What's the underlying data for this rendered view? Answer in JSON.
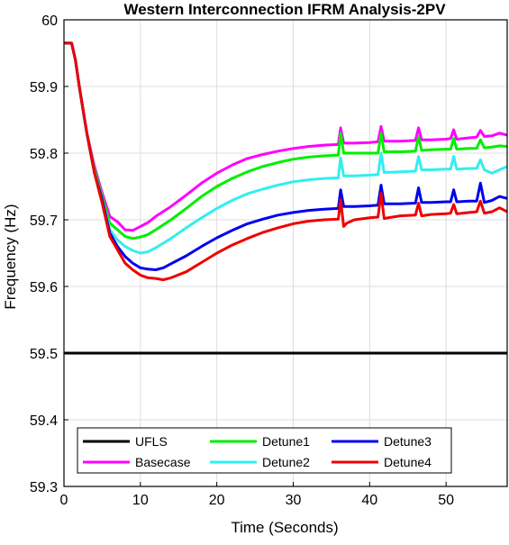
{
  "chart_data": {
    "type": "line",
    "title": "Western Interconnection IFRM Analysis-2PV",
    "xlabel": "Time (Seconds)",
    "ylabel": "Frequency (Hz)",
    "xlim": [
      0,
      58
    ],
    "ylim": [
      59.3,
      60
    ],
    "xticks": [
      0,
      10,
      20,
      30,
      40,
      50
    ],
    "yticks": [
      59.3,
      59.4,
      59.5,
      59.6,
      59.7,
      59.8,
      59.9,
      60
    ],
    "xtick_labels": [
      "0",
      "10",
      "20",
      "30",
      "40",
      "50"
    ],
    "ytick_labels": [
      "59.3",
      "59.4",
      "59.5",
      "59.6",
      "59.7",
      "59.8",
      "59.9",
      "60"
    ],
    "grid": true,
    "legend_position": "bottom",
    "series": [
      {
        "name": "UFLS",
        "color": "#000000",
        "points": [
          [
            0,
            59.5
          ],
          [
            58,
            59.5
          ]
        ]
      },
      {
        "name": "Basecase",
        "color": "#ff00ff",
        "points": [
          [
            0,
            59.965
          ],
          [
            1,
            59.965
          ],
          [
            1.5,
            59.94
          ],
          [
            2,
            59.9
          ],
          [
            3,
            59.83
          ],
          [
            4,
            59.78
          ],
          [
            5,
            59.74
          ],
          [
            6,
            59.705
          ],
          [
            7,
            59.697
          ],
          [
            8,
            59.685
          ],
          [
            9,
            59.684
          ],
          [
            10,
            59.69
          ],
          [
            11,
            59.696
          ],
          [
            12,
            59.705
          ],
          [
            14,
            59.72
          ],
          [
            16,
            59.737
          ],
          [
            18,
            59.755
          ],
          [
            20,
            59.77
          ],
          [
            22,
            59.782
          ],
          [
            24,
            59.792
          ],
          [
            26,
            59.798
          ],
          [
            28,
            59.803
          ],
          [
            30,
            59.807
          ],
          [
            32,
            59.81
          ],
          [
            34,
            59.812
          ],
          [
            35.9,
            59.813
          ],
          [
            36.2,
            59.838
          ],
          [
            36.6,
            59.815
          ],
          [
            38,
            59.815
          ],
          [
            40,
            59.816
          ],
          [
            41.1,
            59.817
          ],
          [
            41.5,
            59.84
          ],
          [
            41.9,
            59.818
          ],
          [
            44,
            59.818
          ],
          [
            46,
            59.819
          ],
          [
            46.4,
            59.838
          ],
          [
            46.8,
            59.82
          ],
          [
            48,
            59.82
          ],
          [
            50,
            59.821
          ],
          [
            50.6,
            59.822
          ],
          [
            51,
            59.835
          ],
          [
            51.4,
            59.821
          ],
          [
            53,
            59.823
          ],
          [
            54,
            59.824
          ],
          [
            54.5,
            59.834
          ],
          [
            55,
            59.825
          ],
          [
            56,
            59.826
          ],
          [
            57,
            59.83
          ],
          [
            58,
            59.827
          ]
        ]
      },
      {
        "name": "Detune1",
        "color": "#00ee00",
        "points": [
          [
            0,
            59.965
          ],
          [
            1,
            59.965
          ],
          [
            1.5,
            59.94
          ],
          [
            2,
            59.9
          ],
          [
            3,
            59.83
          ],
          [
            4,
            59.775
          ],
          [
            5,
            59.735
          ],
          [
            6,
            59.695
          ],
          [
            7,
            59.685
          ],
          [
            8,
            59.675
          ],
          [
            9,
            59.672
          ],
          [
            10,
            59.674
          ],
          [
            11,
            59.678
          ],
          [
            12,
            59.685
          ],
          [
            14,
            59.7
          ],
          [
            16,
            59.717
          ],
          [
            18,
            59.735
          ],
          [
            20,
            59.75
          ],
          [
            22,
            59.762
          ],
          [
            24,
            59.772
          ],
          [
            26,
            59.78
          ],
          [
            28,
            59.786
          ],
          [
            30,
            59.791
          ],
          [
            32,
            59.794
          ],
          [
            34,
            59.796
          ],
          [
            35.9,
            59.797
          ],
          [
            36.2,
            59.83
          ],
          [
            36.6,
            59.8
          ],
          [
            38,
            59.8
          ],
          [
            40,
            59.8
          ],
          [
            41.1,
            59.8
          ],
          [
            41.5,
            59.83
          ],
          [
            41.9,
            59.802
          ],
          [
            44,
            59.802
          ],
          [
            46,
            59.803
          ],
          [
            46.4,
            59.825
          ],
          [
            46.8,
            59.804
          ],
          [
            48,
            59.805
          ],
          [
            50,
            59.806
          ],
          [
            50.6,
            59.806
          ],
          [
            51,
            59.822
          ],
          [
            51.4,
            59.806
          ],
          [
            53,
            59.807
          ],
          [
            54,
            59.807
          ],
          [
            54.5,
            59.82
          ],
          [
            55,
            59.808
          ],
          [
            56,
            59.809
          ],
          [
            57,
            59.811
          ],
          [
            58,
            59.81
          ]
        ]
      },
      {
        "name": "Detune2",
        "color": "#33eeee",
        "points": [
          [
            0,
            59.965
          ],
          [
            1,
            59.965
          ],
          [
            1.5,
            59.94
          ],
          [
            2,
            59.9
          ],
          [
            3,
            59.83
          ],
          [
            4,
            59.77
          ],
          [
            5,
            59.73
          ],
          [
            6,
            59.685
          ],
          [
            7,
            59.67
          ],
          [
            8,
            59.66
          ],
          [
            9,
            59.654
          ],
          [
            10,
            59.65
          ],
          [
            11,
            59.652
          ],
          [
            12,
            59.658
          ],
          [
            14,
            59.672
          ],
          [
            16,
            59.688
          ],
          [
            18,
            59.703
          ],
          [
            20,
            59.717
          ],
          [
            22,
            59.729
          ],
          [
            24,
            59.739
          ],
          [
            26,
            59.746
          ],
          [
            28,
            59.752
          ],
          [
            30,
            59.757
          ],
          [
            32,
            59.76
          ],
          [
            34,
            59.762
          ],
          [
            35.9,
            59.763
          ],
          [
            36.2,
            59.793
          ],
          [
            36.6,
            59.766
          ],
          [
            38,
            59.766
          ],
          [
            40,
            59.767
          ],
          [
            41.1,
            59.768
          ],
          [
            41.5,
            59.8
          ],
          [
            41.9,
            59.771
          ],
          [
            44,
            59.772
          ],
          [
            46,
            59.773
          ],
          [
            46.4,
            59.795
          ],
          [
            46.8,
            59.775
          ],
          [
            48,
            59.775
          ],
          [
            50,
            59.776
          ],
          [
            50.6,
            59.776
          ],
          [
            51,
            59.795
          ],
          [
            51.4,
            59.776
          ],
          [
            53,
            59.777
          ],
          [
            54,
            59.777
          ],
          [
            54.5,
            59.79
          ],
          [
            55,
            59.775
          ],
          [
            56,
            59.77
          ],
          [
            57,
            59.775
          ],
          [
            58,
            59.78
          ]
        ]
      },
      {
        "name": "Detune3",
        "color": "#0000ee",
        "points": [
          [
            0,
            59.965
          ],
          [
            1,
            59.965
          ],
          [
            1.5,
            59.94
          ],
          [
            2,
            59.9
          ],
          [
            3,
            59.83
          ],
          [
            4,
            59.77
          ],
          [
            5,
            59.73
          ],
          [
            6,
            59.68
          ],
          [
            7,
            59.66
          ],
          [
            8,
            59.645
          ],
          [
            9,
            59.635
          ],
          [
            10,
            59.628
          ],
          [
            11,
            59.626
          ],
          [
            12,
            59.625
          ],
          [
            13,
            59.628
          ],
          [
            14,
            59.634
          ],
          [
            16,
            59.646
          ],
          [
            18,
            59.66
          ],
          [
            20,
            59.673
          ],
          [
            22,
            59.684
          ],
          [
            24,
            59.694
          ],
          [
            26,
            59.701
          ],
          [
            28,
            59.707
          ],
          [
            30,
            59.711
          ],
          [
            32,
            59.714
          ],
          [
            34,
            59.716
          ],
          [
            35.9,
            59.717
          ],
          [
            36.2,
            59.745
          ],
          [
            36.6,
            59.72
          ],
          [
            38,
            59.72
          ],
          [
            40,
            59.721
          ],
          [
            41.1,
            59.722
          ],
          [
            41.5,
            59.752
          ],
          [
            41.9,
            59.724
          ],
          [
            44,
            59.724
          ],
          [
            46,
            59.725
          ],
          [
            46.4,
            59.748
          ],
          [
            46.8,
            59.726
          ],
          [
            48,
            59.726
          ],
          [
            50,
            59.727
          ],
          [
            50.6,
            59.727
          ],
          [
            51,
            59.745
          ],
          [
            51.4,
            59.727
          ],
          [
            53,
            59.728
          ],
          [
            54,
            59.728
          ],
          [
            54.5,
            59.755
          ],
          [
            55,
            59.726
          ],
          [
            56,
            59.729
          ],
          [
            57,
            59.735
          ],
          [
            58,
            59.732
          ]
        ]
      },
      {
        "name": "Detune4",
        "color": "#ee0000",
        "points": [
          [
            0,
            59.965
          ],
          [
            1,
            59.965
          ],
          [
            1.5,
            59.94
          ],
          [
            2,
            59.9
          ],
          [
            3,
            59.83
          ],
          [
            4,
            59.77
          ],
          [
            5,
            59.725
          ],
          [
            6,
            59.675
          ],
          [
            7,
            59.655
          ],
          [
            8,
            59.635
          ],
          [
            9,
            59.625
          ],
          [
            10,
            59.617
          ],
          [
            11,
            59.613
          ],
          [
            12,
            59.612
          ],
          [
            13,
            59.61
          ],
          [
            14,
            59.613
          ],
          [
            16,
            59.622
          ],
          [
            18,
            59.636
          ],
          [
            20,
            59.65
          ],
          [
            22,
            59.662
          ],
          [
            24,
            59.672
          ],
          [
            26,
            59.681
          ],
          [
            28,
            59.688
          ],
          [
            30,
            59.694
          ],
          [
            32,
            59.698
          ],
          [
            34,
            59.7
          ],
          [
            35.9,
            59.701
          ],
          [
            36.2,
            59.73
          ],
          [
            36.6,
            59.69
          ],
          [
            37,
            59.695
          ],
          [
            38,
            59.7
          ],
          [
            40,
            59.703
          ],
          [
            41.1,
            59.704
          ],
          [
            41.5,
            59.74
          ],
          [
            41.9,
            59.702
          ],
          [
            44,
            59.706
          ],
          [
            46,
            59.707
          ],
          [
            46.4,
            59.725
          ],
          [
            46.8,
            59.706
          ],
          [
            48,
            59.708
          ],
          [
            50,
            59.709
          ],
          [
            50.6,
            59.71
          ],
          [
            51,
            59.723
          ],
          [
            51.4,
            59.709
          ],
          [
            53,
            59.711
          ],
          [
            54,
            59.712
          ],
          [
            54.5,
            59.728
          ],
          [
            55,
            59.71
          ],
          [
            56,
            59.712
          ],
          [
            57,
            59.718
          ],
          [
            58,
            59.712
          ]
        ]
      }
    ]
  }
}
